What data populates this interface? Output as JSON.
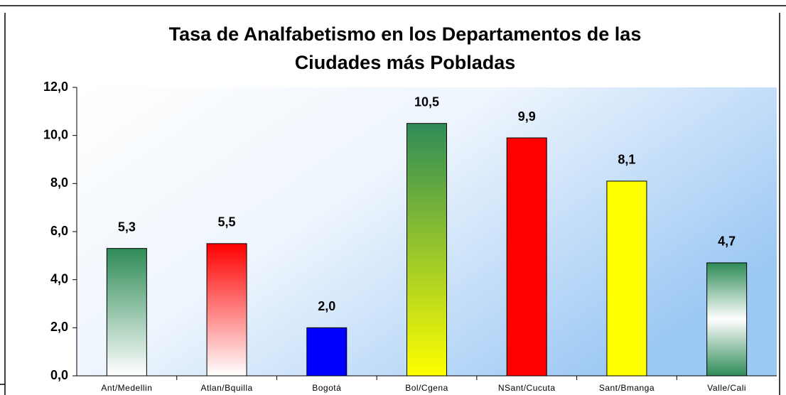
{
  "chart_data": {
    "type": "bar",
    "title": [
      "Tasa de Analfabetismo en los Departamentos de las",
      "Ciudades más Pobladas"
    ],
    "categories": [
      "Ant/Medellin",
      "Atlan/Bquilla",
      "Bogotá",
      "Bol/Cgena",
      "NSant/Cucuta",
      "Sant/Bmanga",
      "Valle/Cali"
    ],
    "values": [
      5.3,
      5.5,
      2.0,
      10.5,
      9.9,
      8.1,
      4.7
    ],
    "value_labels": [
      "5,3",
      "5,5",
      "2,0",
      "10,5",
      "9,9",
      "8,1",
      "4,7"
    ],
    "colors": [
      [
        "#2e8b57",
        "#ffffff"
      ],
      [
        "#ff0000",
        "#ffffff"
      ],
      [
        "#0000ff",
        "#0000ff"
      ],
      [
        "#2e8b57",
        "#ffff00"
      ],
      [
        "#ff0000",
        "#ff0000"
      ],
      [
        "#ffff00",
        "#ffff00"
      ],
      [
        "#2e8b57",
        "#ffffff",
        "#2e8b57"
      ]
    ],
    "ylim": [
      0,
      12
    ],
    "yticks": [
      {
        "value": 0,
        "label": "0,0"
      },
      {
        "value": 2,
        "label": "2,0"
      },
      {
        "value": 4,
        "label": "4,0"
      },
      {
        "value": 6,
        "label": "6,0"
      },
      {
        "value": 8,
        "label": "8,0"
      },
      {
        "value": 10,
        "label": "10,0"
      },
      {
        "value": 12,
        "label": "12,0"
      }
    ]
  }
}
